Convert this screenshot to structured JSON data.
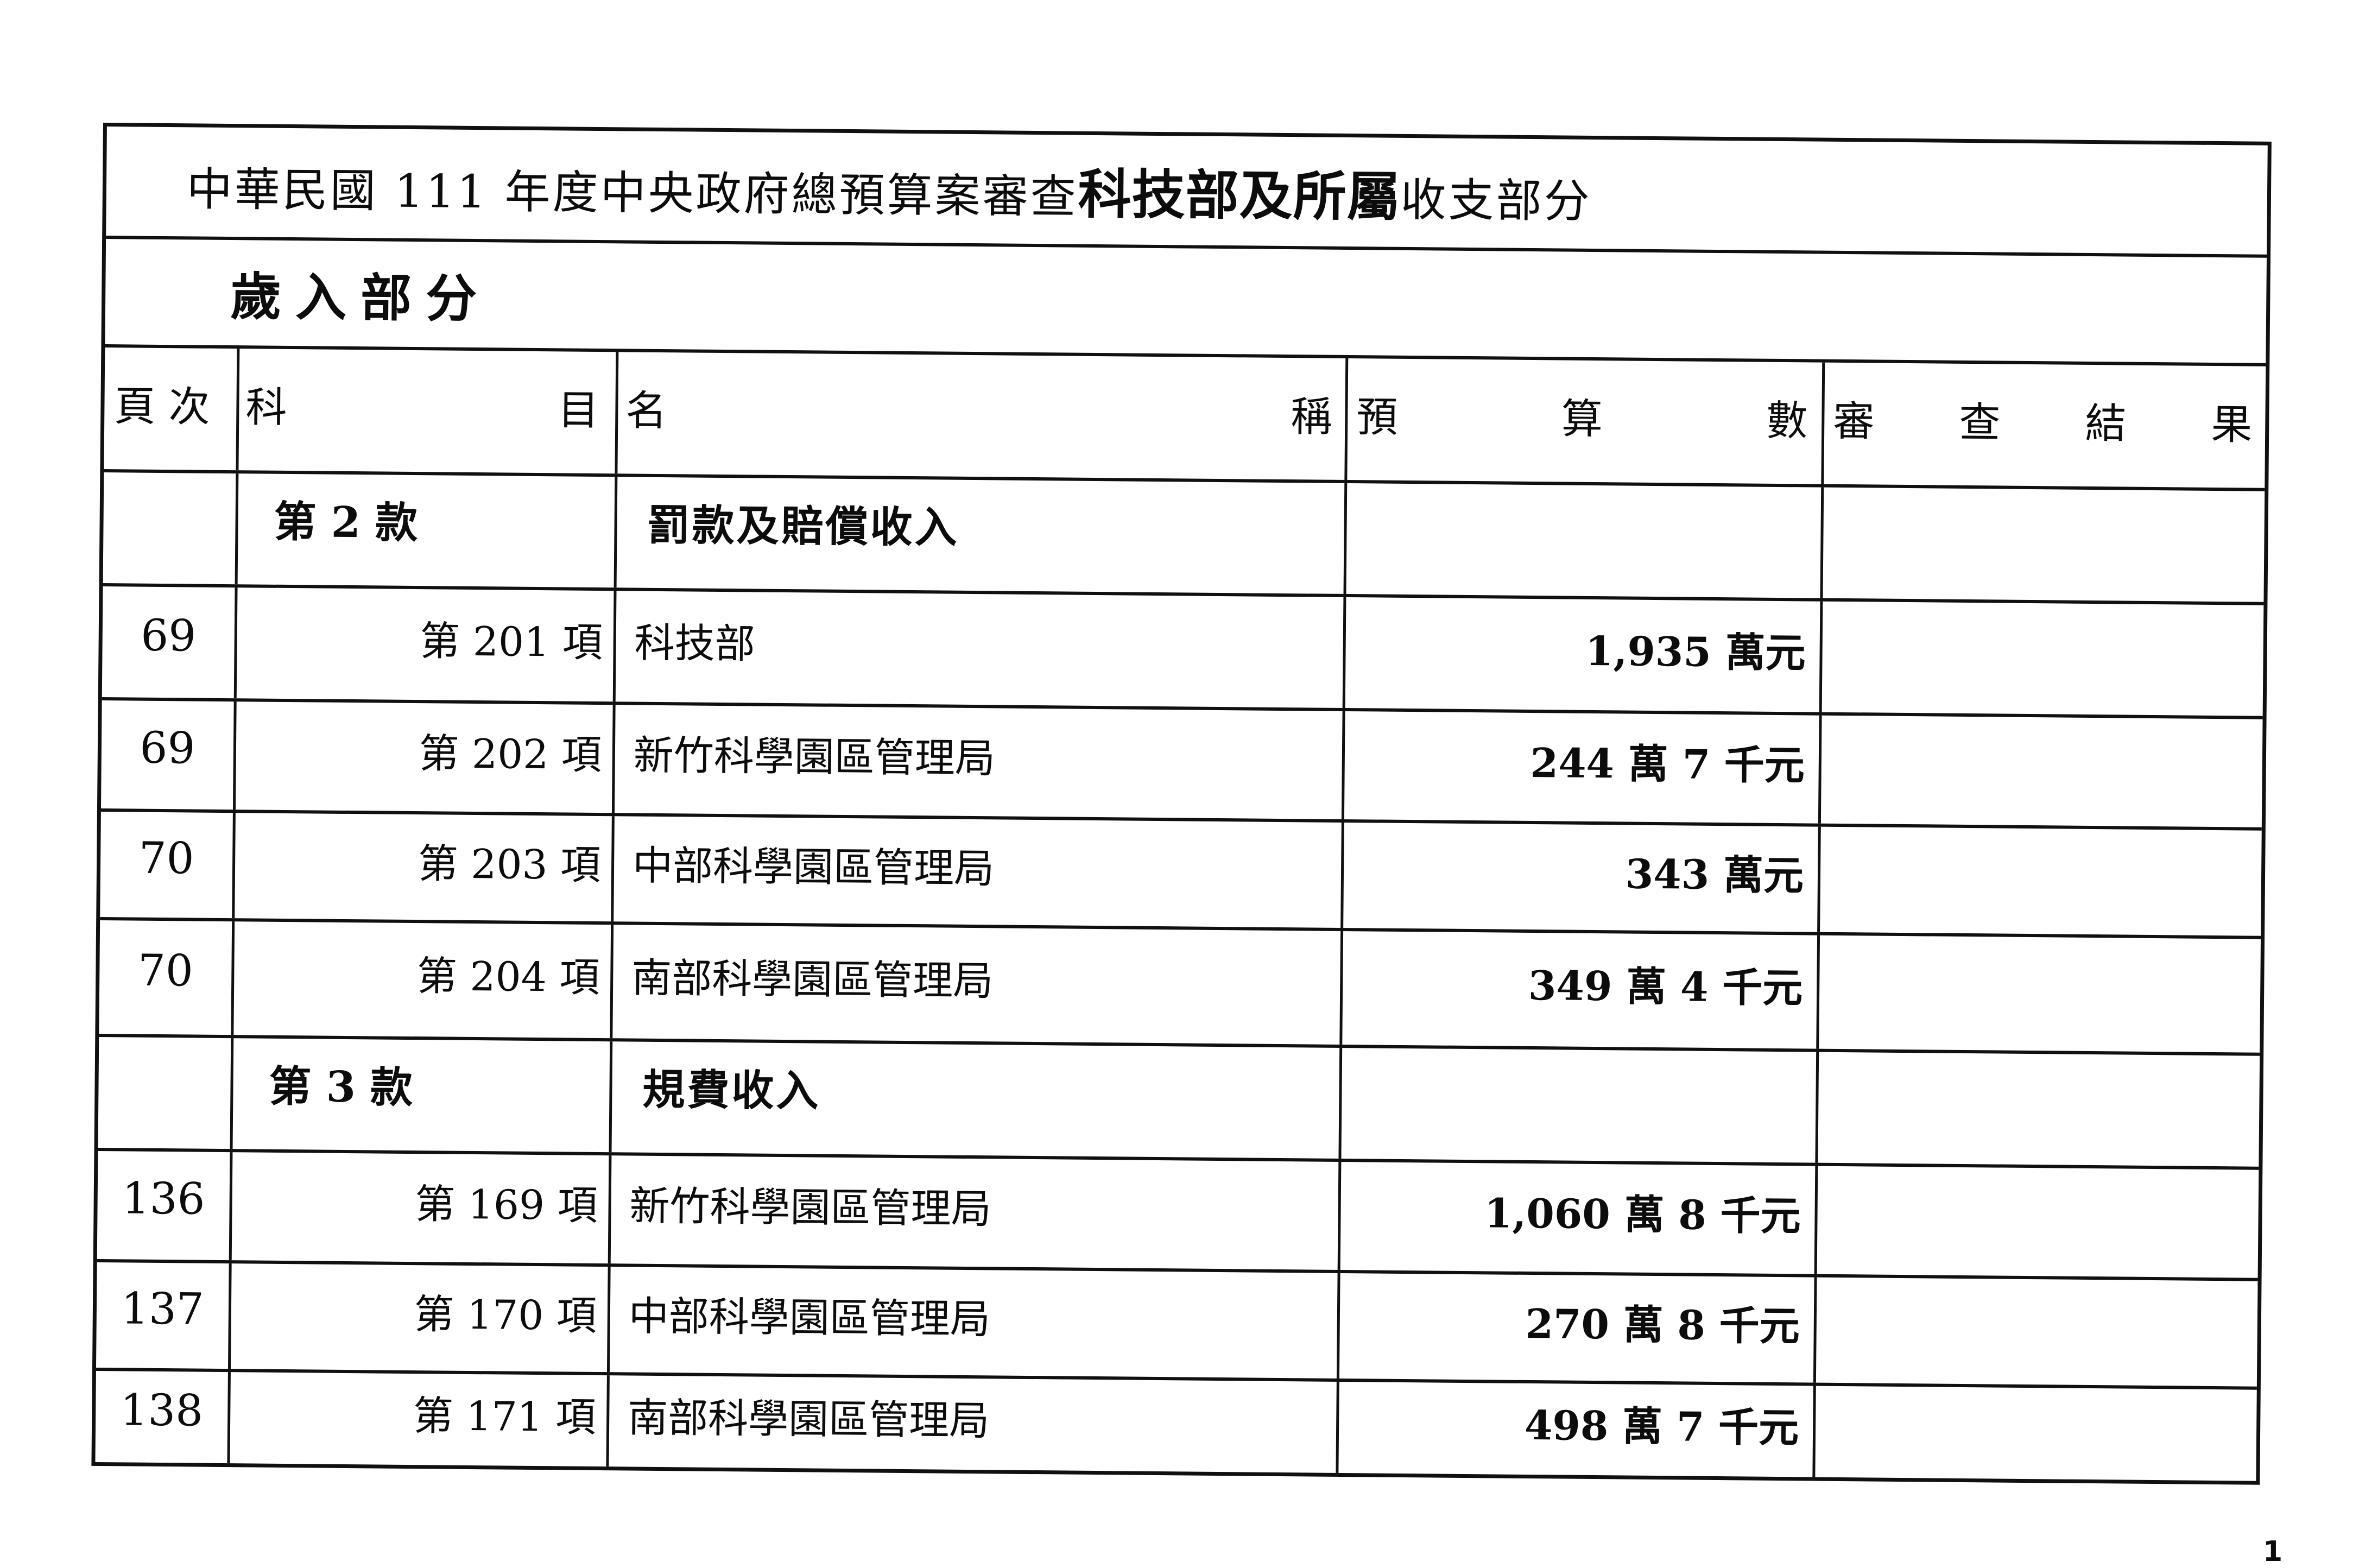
{
  "page": {
    "title": {
      "prefix": "中華民國 111 年度中央政府總預算案審查",
      "bold": "科技部及所屬",
      "suffix": "收支部分"
    },
    "section_heading": "歲入部分",
    "page_number": "1"
  },
  "table": {
    "columns": [
      {
        "key": "page",
        "label": "頁 次"
      },
      {
        "key": "item",
        "label": "科目"
      },
      {
        "key": "name",
        "label": "名稱"
      },
      {
        "key": "budget",
        "label": "預算數"
      },
      {
        "key": "review",
        "label": "審查結果"
      }
    ],
    "rows": [
      {
        "type": "section",
        "page": "",
        "item": "第 2 款",
        "name": "罰款及賠償收入",
        "budget": "",
        "review": ""
      },
      {
        "type": "item",
        "page": "69",
        "item": "第 201 項",
        "name": "科技部",
        "budget": "1,935 萬元",
        "review": ""
      },
      {
        "type": "item",
        "page": "69",
        "item": "第 202 項",
        "name": "新竹科學園區管理局",
        "budget": "244 萬 7 千元",
        "review": ""
      },
      {
        "type": "item",
        "page": "70",
        "item": "第 203 項",
        "name": "中部科學園區管理局",
        "budget": "343 萬元",
        "review": ""
      },
      {
        "type": "item",
        "page": "70",
        "item": "第 204 項",
        "name": "南部科學園區管理局",
        "budget": "349 萬 4 千元",
        "review": ""
      },
      {
        "type": "section",
        "page": "",
        "item": "第 3 款",
        "name": "規費收入",
        "budget": "",
        "review": ""
      },
      {
        "type": "item",
        "page": "136",
        "item": "第 169 項",
        "name": "新竹科學園區管理局",
        "budget": "1,060 萬 8 千元",
        "review": ""
      },
      {
        "type": "item",
        "page": "137",
        "item": "第 170 項",
        "name": "中部科學園區管理局",
        "budget": "270 萬 8 千元",
        "review": ""
      },
      {
        "type": "item",
        "page": "138",
        "item": "第 171 項",
        "name": "南部科學園區管理局",
        "budget": "498 萬 7 千元",
        "review": ""
      }
    ]
  }
}
